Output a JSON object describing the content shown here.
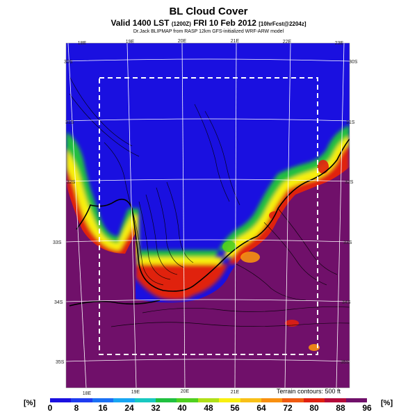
{
  "title": "BL Cloud Cover",
  "subtitle_main": "Valid 1400 LST",
  "subtitle_code": "(1200Z)",
  "subtitle_date": "FRI 10 Feb 2012",
  "subtitle_fcst": "[10hrFcst@2204z]",
  "credit": "Dr.Jack BLIPMAP from RASP 12km GFS-initialized WRF-ARW model",
  "terrain_note": "Terrain contours: 500 ft",
  "unit_label_left": "[%]",
  "unit_label_right": "[%]",
  "colorbar": {
    "ticks": [
      "0",
      "8",
      "16",
      "24",
      "32",
      "40",
      "48",
      "56",
      "64",
      "72",
      "80",
      "88",
      "96"
    ],
    "colors": [
      "#1a10e0",
      "#1e3cf0",
      "#1a70f4",
      "#18a6f2",
      "#18c8c0",
      "#20c040",
      "#50d020",
      "#b0e018",
      "#f8f010",
      "#f8c018",
      "#f89010",
      "#f05a10",
      "#e02010",
      "#b40a3a",
      "#70106a"
    ]
  },
  "map": {
    "lon_labels_top": [
      "18E",
      "19E",
      "20E",
      "21E",
      "22E",
      "23E"
    ],
    "lon_labels_bottom": [
      "18E",
      "19E",
      "20E",
      "21E"
    ],
    "lat_labels_left": [
      "30S",
      "31S",
      "32S",
      "33S",
      "34S",
      "35S"
    ],
    "lat_labels_right": [
      "30S",
      "31S",
      "32S",
      "33S",
      "34S",
      "35S"
    ],
    "colors": {
      "clear": "#1a10e0",
      "overcast": "#70106a"
    }
  }
}
